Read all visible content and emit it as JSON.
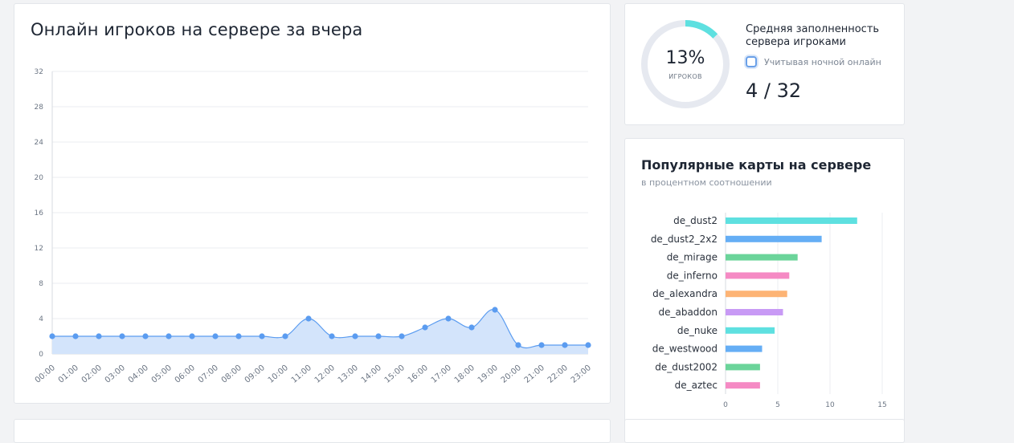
{
  "online_card": {
    "title": "Онлайн игроков на сервере за вчера"
  },
  "fill_card": {
    "percent": "13%",
    "percent_sublabel": "игроков",
    "title": "Средняя заполненность сервера игроками",
    "night_checkbox_label": "Учитывая ночной онлайн",
    "night_checkbox_checked": false,
    "ratio": "4 / 32",
    "ring_fraction": 0.13,
    "ring_color": "#5ee0e0",
    "ring_track_color": "#e6e9f0"
  },
  "maps_card": {
    "title": "Популярные карты на сервере",
    "subtitle": "в процентном соотношении"
  },
  "chart_data": [
    {
      "type": "area",
      "x": [
        "00:00",
        "01:00",
        "02:00",
        "03:00",
        "04:00",
        "05:00",
        "06:00",
        "07:00",
        "08:00",
        "09:00",
        "10:00",
        "11:00",
        "12:00",
        "13:00",
        "14:00",
        "15:00",
        "16:00",
        "17:00",
        "18:00",
        "19:00",
        "20:00",
        "21:00",
        "22:00",
        "23:00"
      ],
      "series": [
        {
          "values": [
            2,
            2,
            2,
            2,
            2,
            2,
            2,
            2,
            2,
            2,
            2,
            4,
            2,
            2,
            2,
            2,
            3,
            4,
            3,
            5,
            1,
            1,
            1,
            1
          ],
          "color": "#5b9cf0",
          "fill": "#d3e4fb"
        }
      ],
      "ylim": [
        0,
        32
      ],
      "yticks": [
        0,
        4,
        8,
        12,
        16,
        20,
        24,
        28,
        32
      ],
      "grid": true
    },
    {
      "type": "bar",
      "orientation": "horizontal",
      "categories": [
        "de_dust2",
        "de_dust2_2x2",
        "de_mirage",
        "de_inferno",
        "de_alexandra",
        "de_abaddon",
        "de_nuke",
        "de_westwood",
        "de_dust2002",
        "de_aztec"
      ],
      "values": [
        12.6,
        9.2,
        6.9,
        6.1,
        5.9,
        5.5,
        4.7,
        3.5,
        3.3,
        3.3
      ],
      "colors": [
        "#5ee0e0",
        "#65aef5",
        "#6bd49a",
        "#f58ac4",
        "#fdb475",
        "#c89af5",
        "#5ee0e0",
        "#65aef5",
        "#6bd49a",
        "#f58ac4"
      ],
      "xlim": [
        0,
        15
      ],
      "xticks": [
        0,
        5,
        10,
        15
      ],
      "grid": true
    }
  ]
}
